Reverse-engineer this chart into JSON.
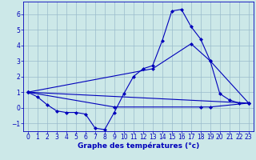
{
  "xlabel": "Graphe des températures (°c)",
  "background_color": "#cce8e8",
  "line_color": "#0000bb",
  "grid_color": "#99bbcc",
  "xlim": [
    -0.5,
    23.5
  ],
  "ylim": [
    -1.5,
    6.8
  ],
  "xticks": [
    0,
    1,
    2,
    3,
    4,
    5,
    6,
    7,
    8,
    9,
    10,
    11,
    12,
    13,
    14,
    15,
    16,
    17,
    18,
    19,
    20,
    21,
    22,
    23
  ],
  "yticks": [
    -1,
    0,
    1,
    2,
    3,
    4,
    5,
    6
  ],
  "line1_x": [
    0,
    1,
    2,
    3,
    4,
    5,
    6,
    7,
    8,
    9,
    10,
    11,
    12,
    13,
    14,
    15,
    16,
    17,
    18,
    19,
    20,
    21,
    22
  ],
  "line1_y": [
    1.0,
    0.7,
    0.2,
    -0.2,
    -0.3,
    -0.3,
    -0.4,
    -1.3,
    -1.4,
    -0.3,
    0.9,
    2.0,
    2.5,
    2.7,
    4.3,
    6.2,
    6.3,
    5.2,
    4.4,
    3.0,
    0.9,
    0.5,
    0.3
  ],
  "line2_x": [
    0,
    23
  ],
  "line2_y": [
    1.0,
    0.3
  ],
  "line3_x": [
    0,
    9,
    18,
    19,
    23
  ],
  "line3_y": [
    1.0,
    0.05,
    0.05,
    0.05,
    0.3
  ],
  "line4_x": [
    0,
    13,
    17,
    19,
    23
  ],
  "line4_y": [
    1.0,
    2.5,
    4.1,
    3.0,
    0.3
  ],
  "markersize": 2.5,
  "linewidth": 0.8,
  "tick_fontsize": 5.5,
  "xlabel_fontsize": 6.5
}
